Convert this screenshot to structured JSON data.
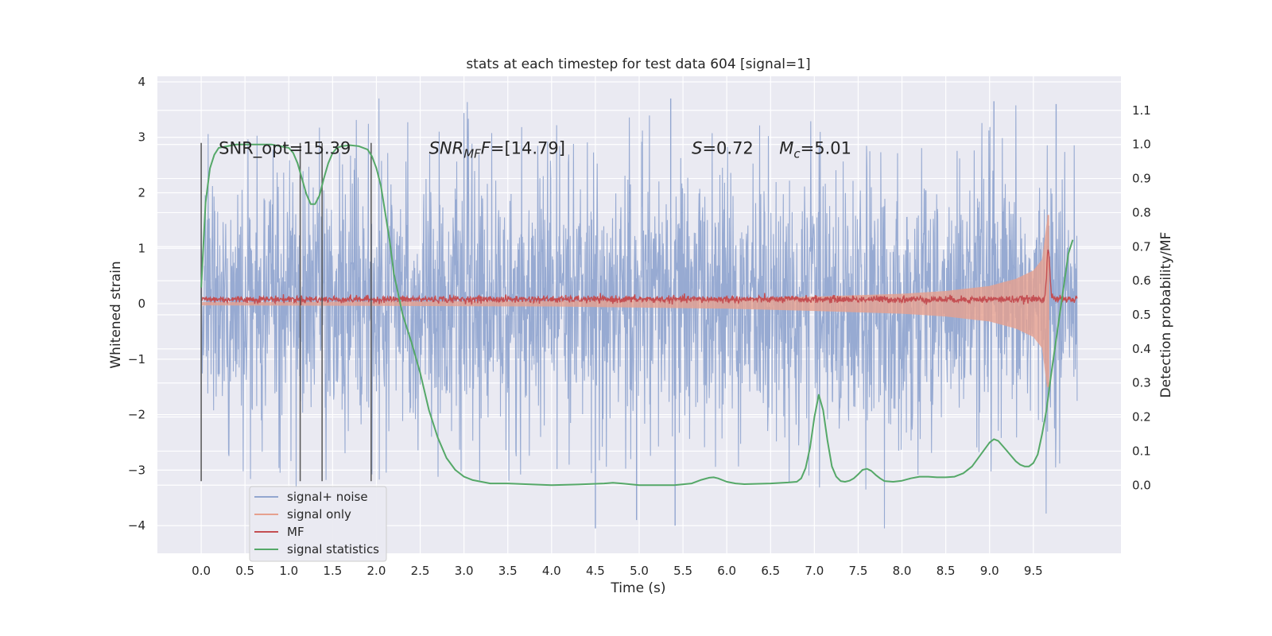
{
  "chart_data": {
    "type": "line",
    "title": "stats at each timestep for test data 604 [signal=1]",
    "xlabel": "Time (s)",
    "ylabel": "Whitened strain",
    "y2label": "Detection probability/MF",
    "xlim": [
      -0.5,
      10.5
    ],
    "ylim": [
      -4.5,
      4.1
    ],
    "y2lim": [
      -0.2,
      1.2
    ],
    "x_ticks": [
      "0.0",
      "0.5",
      "1.0",
      "1.5",
      "2.0",
      "2.5",
      "3.0",
      "3.5",
      "4.0",
      "4.5",
      "5.0",
      "5.5",
      "6.0",
      "6.5",
      "7.0",
      "7.5",
      "8.0",
      "8.5",
      "9.0",
      "9.5"
    ],
    "y_ticks": [
      "4",
      "3",
      "2",
      "1",
      "0",
      "−1",
      "−2",
      "−3",
      "−4"
    ],
    "y2_ticks": [
      "1.1",
      "1.0",
      "0.9",
      "0.8",
      "0.7",
      "0.6",
      "0.5",
      "0.4",
      "0.3",
      "0.2",
      "0.1",
      "0.0"
    ],
    "grid": true,
    "legend_position": "lower-left",
    "annotations": {
      "snr_opt": "SNR_opt=15.39",
      "snr_mf_prefix": "SNR",
      "snr_mf_sub": "MF",
      "snr_mf_value": "=[14.79]",
      "s_prefix": "S",
      "s_value": "=0.72",
      "mc_prefix": "M",
      "mc_sub": "c",
      "mc_value": "=5.01"
    },
    "vertical_markers_x": [
      0.0,
      1.13,
      1.38,
      1.94
    ],
    "series": [
      {
        "name": "signal+ noise",
        "color": "#92a6d0",
        "noise_x_range": [
          0.0,
          10.0
        ],
        "typical_amplitude": 1.2,
        "max_excursion": 3.7,
        "min_excursion": -4.05
      },
      {
        "name": "signal only",
        "color": "#e6a08f",
        "chirp_envelope": [
          [
            0.0,
            0.03
          ],
          [
            2.0,
            0.04
          ],
          [
            4.0,
            0.05
          ],
          [
            5.0,
            0.07
          ],
          [
            6.0,
            0.09
          ],
          [
            7.0,
            0.13
          ],
          [
            8.0,
            0.18
          ],
          [
            8.5,
            0.23
          ],
          [
            9.0,
            0.32
          ],
          [
            9.3,
            0.45
          ],
          [
            9.5,
            0.6
          ],
          [
            9.6,
            0.8
          ],
          [
            9.66,
            1.55
          ]
        ],
        "merger_x": 9.67
      },
      {
        "name": "MF",
        "color": "#c44e52",
        "baseline": 0.08,
        "noise_amplitude": 0.07,
        "peak_x": 9.67,
        "peak_y": 1.0,
        "x_range": [
          0.0,
          10.0
        ]
      },
      {
        "name": "signal statistics",
        "color": "#55a868",
        "axis": "right",
        "x": [
          0.0,
          0.05,
          0.1,
          0.15,
          0.2,
          0.3,
          0.4,
          0.5,
          0.6,
          0.7,
          0.8,
          0.9,
          1.0,
          1.05,
          1.1,
          1.15,
          1.2,
          1.25,
          1.3,
          1.35,
          1.4,
          1.45,
          1.5,
          1.55,
          1.6,
          1.7,
          1.8,
          1.9,
          1.95,
          2.0,
          2.05,
          2.1,
          2.15,
          2.2,
          2.3,
          2.4,
          2.5,
          2.6,
          2.7,
          2.8,
          2.9,
          3.0,
          3.1,
          3.2,
          3.3,
          3.5,
          3.7,
          4.0,
          4.3,
          4.6,
          4.7,
          4.8,
          5.0,
          5.2,
          5.4,
          5.6,
          5.7,
          5.8,
          5.85,
          5.9,
          6.0,
          6.1,
          6.2,
          6.5,
          6.7,
          6.8,
          6.85,
          6.9,
          6.95,
          7.0,
          7.05,
          7.1,
          7.15,
          7.2,
          7.25,
          7.3,
          7.35,
          7.4,
          7.45,
          7.5,
          7.55,
          7.6,
          7.65,
          7.7,
          7.75,
          7.8,
          7.9,
          8.0,
          8.1,
          8.2,
          8.3,
          8.4,
          8.5,
          8.6,
          8.7,
          8.8,
          8.9,
          9.0,
          9.05,
          9.1,
          9.15,
          9.2,
          9.25,
          9.3,
          9.35,
          9.4,
          9.45,
          9.5,
          9.55,
          9.6,
          9.65,
          9.7,
          9.8,
          9.9,
          9.95
        ],
        "values": [
          0.58,
          0.83,
          0.93,
          0.97,
          0.99,
          0.995,
          1.0,
          1.0,
          1.0,
          1.0,
          1.0,
          0.995,
          0.99,
          0.975,
          0.945,
          0.9,
          0.855,
          0.825,
          0.825,
          0.85,
          0.9,
          0.945,
          0.975,
          0.99,
          0.995,
          0.998,
          0.995,
          0.985,
          0.965,
          0.93,
          0.88,
          0.8,
          0.72,
          0.62,
          0.5,
          0.42,
          0.33,
          0.22,
          0.14,
          0.08,
          0.045,
          0.025,
          0.015,
          0.01,
          0.005,
          0.005,
          0.003,
          0.0,
          0.002,
          0.005,
          0.007,
          0.005,
          0.0,
          0.0,
          0.0,
          0.005,
          0.015,
          0.022,
          0.023,
          0.02,
          0.01,
          0.005,
          0.003,
          0.005,
          0.008,
          0.01,
          0.02,
          0.05,
          0.11,
          0.2,
          0.265,
          0.22,
          0.13,
          0.055,
          0.025,
          0.012,
          0.01,
          0.013,
          0.02,
          0.032,
          0.045,
          0.048,
          0.042,
          0.03,
          0.02,
          0.012,
          0.01,
          0.013,
          0.02,
          0.025,
          0.025,
          0.023,
          0.023,
          0.025,
          0.035,
          0.055,
          0.09,
          0.125,
          0.135,
          0.13,
          0.115,
          0.1,
          0.085,
          0.07,
          0.06,
          0.055,
          0.055,
          0.065,
          0.09,
          0.15,
          0.22,
          0.32,
          0.5,
          0.68,
          0.72
        ]
      }
    ]
  }
}
